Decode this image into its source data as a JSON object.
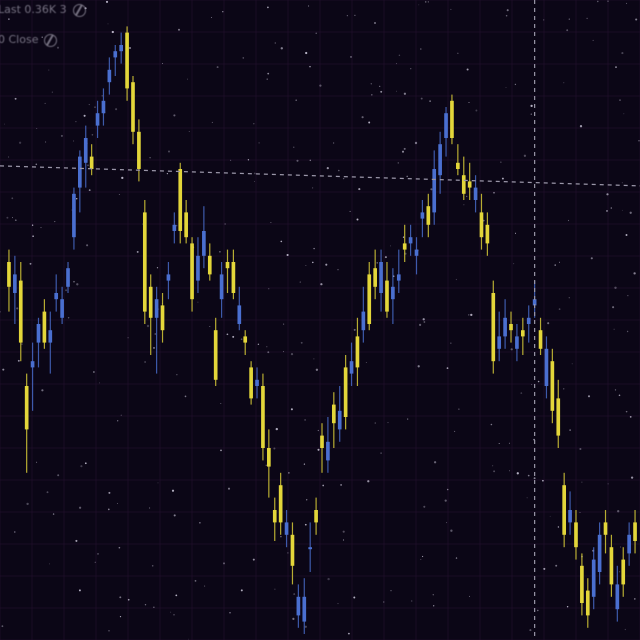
{
  "legend": {
    "row1": "Last 0.36K 3",
    "row2": "0 Close"
  },
  "colors": {
    "background": "#0b0616",
    "grid": "#2a1436",
    "up": "#e3d63a",
    "down": "#4a6fd0",
    "crosshair": "#9a96a8"
  },
  "chart_data": {
    "type": "candlestick",
    "title": "",
    "xlabel": "",
    "ylabel": "",
    "ylim": [
      0,
      100
    ],
    "crosshair": {
      "y_value": 75.5,
      "x_index": 89
    },
    "candles": [
      {
        "o": 56,
        "h": 62,
        "l": 52,
        "c": 60,
        "up": true
      },
      {
        "o": 55,
        "h": 61,
        "l": 50,
        "c": 58,
        "up": false
      },
      {
        "o": 57,
        "h": 60,
        "l": 44,
        "c": 47,
        "up": true
      },
      {
        "o": 40,
        "h": 42,
        "l": 26,
        "c": 33,
        "up": true
      },
      {
        "o": 43,
        "h": 47,
        "l": 36,
        "c": 44,
        "up": false
      },
      {
        "o": 47,
        "h": 51,
        "l": 43,
        "c": 50,
        "up": false
      },
      {
        "o": 52,
        "h": 54,
        "l": 46,
        "c": 47,
        "up": true
      },
      {
        "o": 47,
        "h": 52,
        "l": 42,
        "c": 49,
        "up": false
      },
      {
        "o": 54,
        "h": 58,
        "l": 52,
        "c": 55,
        "up": false
      },
      {
        "o": 54,
        "h": 56,
        "l": 50,
        "c": 51,
        "up": false
      },
      {
        "o": 56,
        "h": 60,
        "l": 55,
        "c": 59,
        "up": false
      },
      {
        "o": 64,
        "h": 72,
        "l": 62,
        "c": 71,
        "up": false
      },
      {
        "o": 72,
        "h": 78,
        "l": 68,
        "c": 77,
        "up": false
      },
      {
        "o": 76,
        "h": 82,
        "l": 72,
        "c": 80,
        "up": false
      },
      {
        "o": 77,
        "h": 79,
        "l": 74,
        "c": 75,
        "up": true
      },
      {
        "o": 82,
        "h": 86,
        "l": 80,
        "c": 84,
        "up": false
      },
      {
        "o": 84,
        "h": 88,
        "l": 82,
        "c": 86,
        "up": false
      },
      {
        "o": 89,
        "h": 93,
        "l": 87,
        "c": 91,
        "up": false
      },
      {
        "o": 93,
        "h": 95,
        "l": 90,
        "c": 94,
        "up": false
      },
      {
        "o": 94,
        "h": 97,
        "l": 92,
        "c": 95,
        "up": false
      },
      {
        "o": 97,
        "h": 98,
        "l": 86,
        "c": 88,
        "up": true
      },
      {
        "o": 89,
        "h": 90,
        "l": 79,
        "c": 81,
        "up": true
      },
      {
        "o": 81,
        "h": 83,
        "l": 73,
        "c": 75,
        "up": true
      },
      {
        "o": 68,
        "h": 70,
        "l": 50,
        "c": 52,
        "up": true
      },
      {
        "o": 56,
        "h": 58,
        "l": 45,
        "c": 51,
        "up": true
      },
      {
        "o": 51,
        "h": 56,
        "l": 42,
        "c": 54,
        "up": false
      },
      {
        "o": 53,
        "h": 55,
        "l": 47,
        "c": 49,
        "up": true
      },
      {
        "o": 57,
        "h": 60,
        "l": 54,
        "c": 58,
        "up": false
      },
      {
        "o": 65,
        "h": 68,
        "l": 63,
        "c": 66,
        "up": false
      },
      {
        "o": 75,
        "h": 76,
        "l": 63,
        "c": 65,
        "up": true
      },
      {
        "o": 68,
        "h": 70,
        "l": 63,
        "c": 64,
        "up": true
      },
      {
        "o": 63,
        "h": 64,
        "l": 52,
        "c": 54,
        "up": true
      },
      {
        "o": 61,
        "h": 64,
        "l": 55,
        "c": 57,
        "up": false
      },
      {
        "o": 65,
        "h": 69,
        "l": 59,
        "c": 61,
        "up": false
      },
      {
        "o": 61,
        "h": 63,
        "l": 57,
        "c": 58,
        "up": true
      },
      {
        "o": 49,
        "h": 51,
        "l": 40,
        "c": 41,
        "up": true
      },
      {
        "o": 58,
        "h": 60,
        "l": 51,
        "c": 54,
        "up": false
      },
      {
        "o": 59,
        "h": 62,
        "l": 55,
        "c": 60,
        "up": true
      },
      {
        "o": 60,
        "h": 62,
        "l": 54,
        "c": 55,
        "up": true
      },
      {
        "o": 53,
        "h": 56,
        "l": 49,
        "c": 50,
        "up": false
      },
      {
        "o": 48,
        "h": 49,
        "l": 45,
        "c": 47,
        "up": true
      },
      {
        "o": 43,
        "h": 44,
        "l": 37,
        "c": 38,
        "up": true
      },
      {
        "o": 41,
        "h": 43,
        "l": 38,
        "c": 40,
        "up": false
      },
      {
        "o": 40,
        "h": 42,
        "l": 28,
        "c": 30,
        "up": true
      },
      {
        "o": 30,
        "h": 33,
        "l": 22,
        "c": 27,
        "up": true
      },
      {
        "o": 20,
        "h": 22,
        "l": 15,
        "c": 18,
        "up": true
      },
      {
        "o": 24,
        "h": 26,
        "l": 16,
        "c": 18,
        "up": true
      },
      {
        "o": 18,
        "h": 20,
        "l": 14,
        "c": 16,
        "up": false
      },
      {
        "o": 16,
        "h": 18,
        "l": 8,
        "c": 11,
        "up": true
      },
      {
        "o": 6,
        "h": 8,
        "l": 1,
        "c": 3,
        "up": false
      },
      {
        "o": 6,
        "h": 9,
        "l": 0,
        "c": 2,
        "up": false
      },
      {
        "o": 14,
        "h": 18,
        "l": 10,
        "c": 14,
        "up": false
      },
      {
        "o": 20,
        "h": 22,
        "l": 16,
        "c": 18,
        "up": true
      },
      {
        "o": 30,
        "h": 34,
        "l": 26,
        "c": 32,
        "up": true
      },
      {
        "o": 31,
        "h": 35,
        "l": 26,
        "c": 28,
        "up": false
      },
      {
        "o": 34,
        "h": 39,
        "l": 30,
        "c": 37,
        "up": true
      },
      {
        "o": 36,
        "h": 40,
        "l": 31,
        "c": 33,
        "up": false
      },
      {
        "o": 43,
        "h": 45,
        "l": 33,
        "c": 35,
        "up": true
      },
      {
        "o": 44,
        "h": 47,
        "l": 40,
        "c": 42,
        "up": false
      },
      {
        "o": 48,
        "h": 51,
        "l": 40,
        "c": 43,
        "up": true
      },
      {
        "o": 52,
        "h": 56,
        "l": 47,
        "c": 49,
        "up": false
      },
      {
        "o": 58,
        "h": 60,
        "l": 49,
        "c": 50,
        "up": true
      },
      {
        "o": 59,
        "h": 62,
        "l": 54,
        "c": 56,
        "up": true
      },
      {
        "o": 60,
        "h": 62,
        "l": 52,
        "c": 55,
        "up": false
      },
      {
        "o": 57,
        "h": 60,
        "l": 51,
        "c": 52,
        "up": true
      },
      {
        "o": 56,
        "h": 59,
        "l": 50,
        "c": 54,
        "up": false
      },
      {
        "o": 58,
        "h": 62,
        "l": 55,
        "c": 57,
        "up": false
      },
      {
        "o": 63,
        "h": 66,
        "l": 60,
        "c": 62,
        "up": true
      },
      {
        "o": 63,
        "h": 66,
        "l": 61,
        "c": 64,
        "up": false
      },
      {
        "o": 61,
        "h": 64,
        "l": 58,
        "c": 62,
        "up": false
      },
      {
        "o": 68,
        "h": 70,
        "l": 64,
        "c": 67,
        "up": false
      },
      {
        "o": 69,
        "h": 71,
        "l": 64,
        "c": 66,
        "up": true
      },
      {
        "o": 75,
        "h": 78,
        "l": 66,
        "c": 68,
        "up": false
      },
      {
        "o": 74,
        "h": 81,
        "l": 71,
        "c": 79,
        "up": false
      },
      {
        "o": 80,
        "h": 85,
        "l": 77,
        "c": 84,
        "up": false
      },
      {
        "o": 86,
        "h": 87,
        "l": 79,
        "c": 80,
        "up": true
      },
      {
        "o": 76,
        "h": 79,
        "l": 74,
        "c": 75,
        "up": true
      },
      {
        "o": 74,
        "h": 77,
        "l": 70,
        "c": 71,
        "up": true
      },
      {
        "o": 73,
        "h": 76,
        "l": 70,
        "c": 72,
        "up": true
      },
      {
        "o": 72,
        "h": 74,
        "l": 68,
        "c": 70,
        "up": false
      },
      {
        "o": 68,
        "h": 71,
        "l": 62,
        "c": 64,
        "up": true
      },
      {
        "o": 66,
        "h": 68,
        "l": 61,
        "c": 63,
        "up": true
      },
      {
        "o": 55,
        "h": 57,
        "l": 42,
        "c": 44,
        "up": true
      },
      {
        "o": 48,
        "h": 52,
        "l": 44,
        "c": 46,
        "up": false
      },
      {
        "o": 51,
        "h": 54,
        "l": 46,
        "c": 48,
        "up": false
      },
      {
        "o": 50,
        "h": 52,
        "l": 47,
        "c": 49,
        "up": true
      },
      {
        "o": 48,
        "h": 50,
        "l": 44,
        "c": 46,
        "up": false
      },
      {
        "o": 49,
        "h": 51,
        "l": 45,
        "c": 48,
        "up": true
      },
      {
        "o": 51,
        "h": 53,
        "l": 47,
        "c": 50,
        "up": false
      },
      {
        "o": 54,
        "h": 57,
        "l": 51,
        "c": 53,
        "up": false
      },
      {
        "o": 49,
        "h": 51,
        "l": 45,
        "c": 46,
        "up": true
      },
      {
        "o": 46,
        "h": 48,
        "l": 38,
        "c": 40,
        "up": false
      },
      {
        "o": 44,
        "h": 46,
        "l": 34,
        "c": 36,
        "up": true
      },
      {
        "o": 38,
        "h": 41,
        "l": 30,
        "c": 32,
        "up": true
      },
      {
        "o": 24,
        "h": 26,
        "l": 14,
        "c": 16,
        "up": true
      },
      {
        "o": 20,
        "h": 23,
        "l": 16,
        "c": 18,
        "up": false
      },
      {
        "o": 18,
        "h": 20,
        "l": 12,
        "c": 14,
        "up": true
      },
      {
        "o": 11,
        "h": 13,
        "l": 3,
        "c": 5,
        "up": true
      },
      {
        "o": 7,
        "h": 9,
        "l": 1,
        "c": 3,
        "up": true
      },
      {
        "o": 12,
        "h": 14,
        "l": 4,
        "c": 6,
        "up": false
      },
      {
        "o": 16,
        "h": 18,
        "l": 8,
        "c": 10,
        "up": false
      },
      {
        "o": 18,
        "h": 20,
        "l": 13,
        "c": 16,
        "up": true
      },
      {
        "o": 14,
        "h": 16,
        "l": 6,
        "c": 8,
        "up": true
      },
      {
        "o": 8,
        "h": 11,
        "l": 2,
        "c": 4,
        "up": false
      },
      {
        "o": 12,
        "h": 14,
        "l": 6,
        "c": 8,
        "up": true
      },
      {
        "o": 16,
        "h": 18,
        "l": 11,
        "c": 13,
        "up": false
      },
      {
        "o": 18,
        "h": 20,
        "l": 13,
        "c": 15,
        "up": true
      }
    ]
  }
}
